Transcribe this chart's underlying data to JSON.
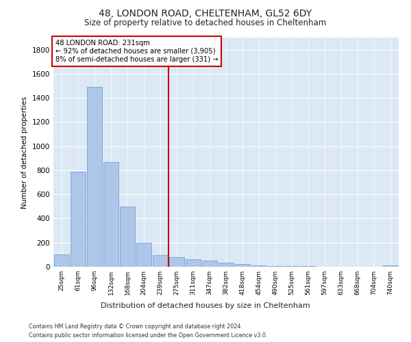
{
  "title1": "48, LONDON ROAD, CHELTENHAM, GL52 6DY",
  "title2": "Size of property relative to detached houses in Cheltenham",
  "xlabel": "Distribution of detached houses by size in Cheltenham",
  "ylabel": "Number of detached properties",
  "footer1": "Contains HM Land Registry data © Crown copyright and database right 2024.",
  "footer2": "Contains public sector information licensed under the Open Government Licence v3.0.",
  "annotation_title": "48 LONDON ROAD: 231sqm",
  "annotation_line1": "← 92% of detached houses are smaller (3,905)",
  "annotation_line2": "8% of semi-detached houses are larger (331) →",
  "bar_labels": [
    "25sqm",
    "61sqm",
    "96sqm",
    "132sqm",
    "168sqm",
    "204sqm",
    "239sqm",
    "275sqm",
    "311sqm",
    "347sqm",
    "382sqm",
    "418sqm",
    "454sqm",
    "490sqm",
    "525sqm",
    "561sqm",
    "597sqm",
    "633sqm",
    "668sqm",
    "704sqm",
    "740sqm"
  ],
  "bar_values": [
    100,
    790,
    1490,
    870,
    500,
    200,
    95,
    80,
    65,
    50,
    35,
    20,
    10,
    5,
    5,
    3,
    2,
    2,
    1,
    1,
    10
  ],
  "bar_color": "#aec6e8",
  "bar_edge_color": "#5b9bd5",
  "vline_color": "#cc0000",
  "annotation_box_color": "#cc0000",
  "ylim": [
    0,
    1900
  ],
  "yticks": [
    0,
    200,
    400,
    600,
    800,
    1000,
    1200,
    1400,
    1600,
    1800
  ],
  "bg_color": "#dce9f5",
  "fig_bg_color": "#ffffff",
  "vline_position": 6.5
}
